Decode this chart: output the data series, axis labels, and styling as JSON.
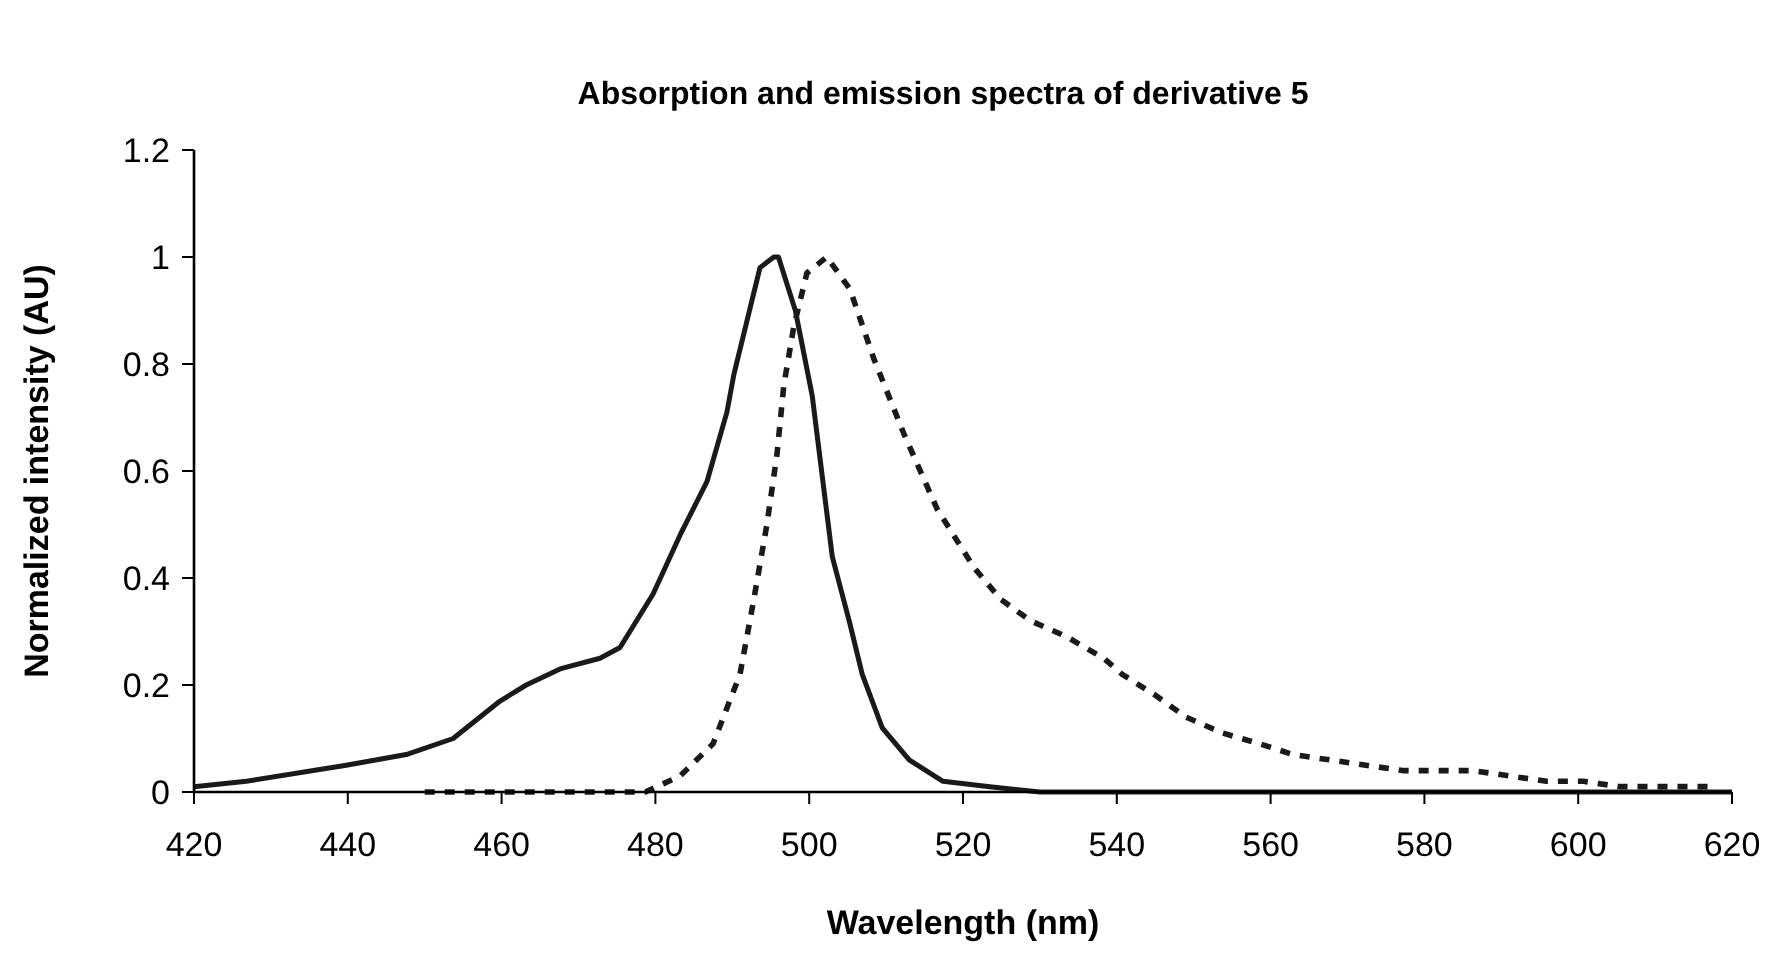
{
  "chart_data": {
    "type": "line",
    "title": "Absorption and emission spectra of derivative 5",
    "xlabel": "Wavelength (nm)",
    "ylabel": "Normalized intensity (AU)",
    "xlim": [
      420,
      620
    ],
    "xticks": [
      420,
      440,
      460,
      480,
      500,
      520,
      540,
      560,
      580,
      600,
      620
    ],
    "ylim": [
      0,
      1.2
    ],
    "yticks": [
      0,
      0.2,
      0.4,
      0.6,
      0.8,
      1,
      1.2
    ],
    "grid": false,
    "series": [
      {
        "color": "#1a1a1a",
        "line_style": "solid",
        "x": [
          420,
          426.8,
          439.8,
          447.6,
          453.7,
          459.8,
          463.2,
          467.6,
          472.8,
          475.4,
          479.7,
          483.2,
          486.7,
          489.3,
          490.2,
          491.9,
          493.6,
          495.4,
          496,
          498.2,
          500.4,
          501.7,
          503,
          505.2,
          506.9,
          509.5,
          513,
          517.4,
          523.5,
          530,
          560,
          590,
          620
        ],
        "values": [
          0.01,
          0.02,
          0.05,
          0.07,
          0.1,
          0.17,
          0.2,
          0.23,
          0.25,
          0.27,
          0.37,
          0.48,
          0.58,
          0.71,
          0.78,
          0.88,
          0.98,
          1.0,
          1.0,
          0.9,
          0.74,
          0.59,
          0.44,
          0.32,
          0.22,
          0.12,
          0.06,
          0.02,
          0.01,
          0,
          0,
          0,
          0
        ]
      },
      {
        "color": "#1a1a1a",
        "line_style": "dashed",
        "x": [
          450,
          465,
          478.7,
          483.2,
          487.5,
          491,
          492.8,
          494.5,
          495.8,
          496.7,
          498,
          499.7,
          502.3,
          505.3,
          508.4,
          512.3,
          516.6,
          521.4,
          524.9,
          528.8,
          533.5,
          538.3,
          540.7,
          545.1,
          549,
          553.8,
          558.6,
          562.9,
          567.7,
          572.4,
          577.2,
          581.6,
          586.3,
          591.1,
          595.9,
          600.7,
          605.4,
          617
        ],
        "values": [
          0,
          0,
          0,
          0.03,
          0.09,
          0.22,
          0.36,
          0.5,
          0.63,
          0.76,
          0.87,
          0.97,
          1.0,
          0.94,
          0.81,
          0.67,
          0.53,
          0.42,
          0.36,
          0.32,
          0.29,
          0.25,
          0.22,
          0.18,
          0.14,
          0.11,
          0.09,
          0.07,
          0.06,
          0.05,
          0.04,
          0.04,
          0.04,
          0.03,
          0.02,
          0.02,
          0.01,
          0.01
        ]
      }
    ]
  }
}
